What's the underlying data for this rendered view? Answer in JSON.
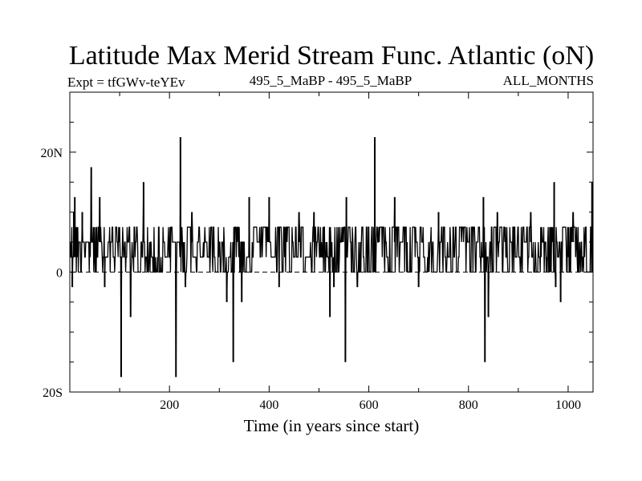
{
  "chart_data": {
    "type": "line",
    "title": "Latitude Max Merid Stream Func. Atlantic (oN)",
    "subtitle_left": "Expt = tfGWv-teYEv",
    "subtitle_center": "495_5_MaBP - 495_5_MaBP",
    "subtitle_right": "ALL_MONTHS",
    "xlabel": "Time (in years since start)",
    "ylabel": "",
    "xlim": [
      0,
      1050
    ],
    "ylim": [
      -20,
      30
    ],
    "x_ticks": [
      200,
      400,
      600,
      800,
      1000
    ],
    "x_tick_labels": [
      "200",
      "400",
      "600",
      "800",
      "1000"
    ],
    "y_ticks": [
      -20,
      0,
      20
    ],
    "y_tick_labels": [
      "20S",
      "0",
      "20N"
    ],
    "zero_line": true,
    "series_note": "annual values alternating mostly between 0N and 7.5N (2.5 degree grid)",
    "series": [
      {
        "name": "latitude",
        "baseline_levels": [
          0,
          2.5,
          5,
          7.5
        ],
        "spikes": [
          {
            "x": 5,
            "y": -2.5
          },
          {
            "x": 8,
            "y": 10
          },
          {
            "x": 10,
            "y": 12.5
          },
          {
            "x": 25,
            "y": 10
          },
          {
            "x": 43,
            "y": 17.5
          },
          {
            "x": 60,
            "y": 12.5
          },
          {
            "x": 70,
            "y": -2.5
          },
          {
            "x": 103,
            "y": -17.5
          },
          {
            "x": 122,
            "y": -7.5
          },
          {
            "x": 148,
            "y": 15
          },
          {
            "x": 213,
            "y": -17.5
          },
          {
            "x": 222,
            "y": 22.5
          },
          {
            "x": 232,
            "y": -2.5
          },
          {
            "x": 245,
            "y": 10
          },
          {
            "x": 315,
            "y": -5
          },
          {
            "x": 328,
            "y": -15
          },
          {
            "x": 345,
            "y": -5
          },
          {
            "x": 360,
            "y": 12.5
          },
          {
            "x": 400,
            "y": 12.5
          },
          {
            "x": 420,
            "y": -2.5
          },
          {
            "x": 460,
            "y": 10
          },
          {
            "x": 490,
            "y": 10
          },
          {
            "x": 522,
            "y": -7.5
          },
          {
            "x": 530,
            "y": -2.5
          },
          {
            "x": 553,
            "y": -15
          },
          {
            "x": 555,
            "y": 12.5
          },
          {
            "x": 577,
            "y": -2.5
          },
          {
            "x": 612,
            "y": 22.5
          },
          {
            "x": 652,
            "y": 12.5
          },
          {
            "x": 700,
            "y": -2.5
          },
          {
            "x": 740,
            "y": 10
          },
          {
            "x": 830,
            "y": 12.5
          },
          {
            "x": 833,
            "y": -15
          },
          {
            "x": 840,
            "y": -7.5
          },
          {
            "x": 858,
            "y": 10
          },
          {
            "x": 925,
            "y": 10
          },
          {
            "x": 972,
            "y": 15
          },
          {
            "x": 975,
            "y": -2.5
          },
          {
            "x": 985,
            "y": -5
          },
          {
            "x": 1010,
            "y": 10
          },
          {
            "x": 1048,
            "y": 15
          }
        ]
      }
    ]
  }
}
